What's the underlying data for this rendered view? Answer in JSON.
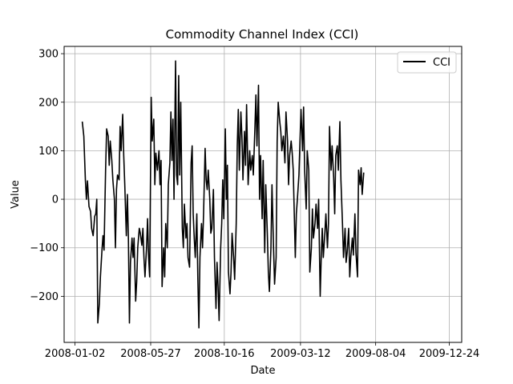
{
  "chart_data": {
    "type": "line",
    "title": "Commodity Channel Index (CCI)",
    "xlabel": "Date",
    "ylabel": "Value",
    "grid": true,
    "legend_position": "top-right",
    "xlim": [
      "2007-12-12",
      "2010-01-17"
    ],
    "ylim": [
      -295,
      315
    ],
    "x_ticks": [
      "2008-01-02",
      "2008-05-27",
      "2008-10-16",
      "2009-03-12",
      "2009-08-04",
      "2009-12-24"
    ],
    "y_ticks": [
      -200,
      -100,
      0,
      100,
      200,
      300
    ],
    "y_tick_labels": [
      "−200",
      "−100",
      "0",
      "100",
      "200",
      "300"
    ],
    "series": [
      {
        "name": "CCI",
        "color": "#000000",
        "points": [
          [
            "2008-01-16",
            160
          ],
          [
            "2008-01-19",
            130
          ],
          [
            "2008-01-22",
            40
          ],
          [
            "2008-01-24",
            0
          ],
          [
            "2008-01-26",
            38
          ],
          [
            "2008-01-29",
            -15
          ],
          [
            "2008-02-01",
            -25
          ],
          [
            "2008-02-03",
            -60
          ],
          [
            "2008-02-06",
            -75
          ],
          [
            "2008-02-09",
            -35
          ],
          [
            "2008-02-11",
            -30
          ],
          [
            "2008-02-13",
            0
          ],
          [
            "2008-02-15",
            -255
          ],
          [
            "2008-02-18",
            -215
          ],
          [
            "2008-02-20",
            -160
          ],
          [
            "2008-02-23",
            -105
          ],
          [
            "2008-02-25",
            -75
          ],
          [
            "2008-02-27",
            -105
          ],
          [
            "2008-03-01",
            60
          ],
          [
            "2008-03-03",
            145
          ],
          [
            "2008-03-06",
            130
          ],
          [
            "2008-03-08",
            70
          ],
          [
            "2008-03-10",
            120
          ],
          [
            "2008-03-13",
            80
          ],
          [
            "2008-03-15",
            40
          ],
          [
            "2008-03-18",
            0
          ],
          [
            "2008-03-20",
            -100
          ],
          [
            "2008-03-22",
            20
          ],
          [
            "2008-03-24",
            50
          ],
          [
            "2008-03-27",
            40
          ],
          [
            "2008-03-29",
            150
          ],
          [
            "2008-03-31",
            100
          ],
          [
            "2008-04-03",
            175
          ],
          [
            "2008-04-05",
            90
          ],
          [
            "2008-04-07",
            30
          ],
          [
            "2008-04-10",
            -75
          ],
          [
            "2008-04-12",
            10
          ],
          [
            "2008-04-14",
            -80
          ],
          [
            "2008-04-16",
            -255
          ],
          [
            "2008-04-18",
            -130
          ],
          [
            "2008-04-21",
            -80
          ],
          [
            "2008-04-23",
            -120
          ],
          [
            "2008-04-25",
            -80
          ],
          [
            "2008-04-28",
            -210
          ],
          [
            "2008-04-30",
            -170
          ],
          [
            "2008-05-02",
            -100
          ],
          [
            "2008-05-05",
            -60
          ],
          [
            "2008-05-07",
            -70
          ],
          [
            "2008-05-10",
            -95
          ],
          [
            "2008-05-12",
            -60
          ],
          [
            "2008-05-14",
            -120
          ],
          [
            "2008-05-16",
            -160
          ],
          [
            "2008-05-19",
            -100
          ],
          [
            "2008-05-21",
            -40
          ],
          [
            "2008-05-23",
            -120
          ],
          [
            "2008-05-25",
            -160
          ],
          [
            "2008-05-28",
            210
          ],
          [
            "2008-05-30",
            120
          ],
          [
            "2008-06-02",
            165
          ],
          [
            "2008-06-04",
            30
          ],
          [
            "2008-06-06",
            95
          ],
          [
            "2008-06-09",
            60
          ],
          [
            "2008-06-12",
            100
          ],
          [
            "2008-06-14",
            30
          ],
          [
            "2008-06-16",
            80
          ],
          [
            "2008-06-18",
            -180
          ],
          [
            "2008-06-21",
            -100
          ],
          [
            "2008-06-23",
            -160
          ],
          [
            "2008-06-25",
            -50
          ],
          [
            "2008-06-28",
            -100
          ],
          [
            "2008-06-30",
            30
          ],
          [
            "2008-07-03",
            75
          ],
          [
            "2008-07-05",
            180
          ],
          [
            "2008-07-07",
            80
          ],
          [
            "2008-07-09",
            165
          ],
          [
            "2008-07-11",
            0
          ],
          [
            "2008-07-14",
            285
          ],
          [
            "2008-07-16",
            50
          ],
          [
            "2008-07-18",
            30
          ],
          [
            "2008-07-20",
            255
          ],
          [
            "2008-07-22",
            50
          ],
          [
            "2008-07-24",
            200
          ],
          [
            "2008-07-27",
            -60
          ],
          [
            "2008-07-29",
            -100
          ],
          [
            "2008-07-31",
            -10
          ],
          [
            "2008-08-03",
            -80
          ],
          [
            "2008-08-05",
            -50
          ],
          [
            "2008-08-07",
            -120
          ],
          [
            "2008-08-10",
            -140
          ],
          [
            "2008-08-13",
            75
          ],
          [
            "2008-08-15",
            110
          ],
          [
            "2008-08-17",
            -30
          ],
          [
            "2008-08-19",
            -80
          ],
          [
            "2008-08-21",
            -120
          ],
          [
            "2008-08-24",
            -30
          ],
          [
            "2008-08-26",
            -165
          ],
          [
            "2008-08-28",
            -265
          ],
          [
            "2008-08-30",
            -120
          ],
          [
            "2008-09-02",
            -50
          ],
          [
            "2008-09-04",
            -100
          ],
          [
            "2008-09-06",
            -30
          ],
          [
            "2008-09-09",
            105
          ],
          [
            "2008-09-11",
            40
          ],
          [
            "2008-09-13",
            20
          ],
          [
            "2008-09-15",
            60
          ],
          [
            "2008-09-18",
            0
          ],
          [
            "2008-09-20",
            -70
          ],
          [
            "2008-09-22",
            -60
          ],
          [
            "2008-09-25",
            20
          ],
          [
            "2008-09-27",
            -120
          ],
          [
            "2008-09-30",
            -225
          ],
          [
            "2008-10-02",
            -130
          ],
          [
            "2008-10-04",
            -180
          ],
          [
            "2008-10-06",
            -250
          ],
          [
            "2008-10-09",
            -100
          ],
          [
            "2008-10-11",
            -50
          ],
          [
            "2008-10-13",
            40
          ],
          [
            "2008-10-15",
            -40
          ],
          [
            "2008-10-18",
            145
          ],
          [
            "2008-10-20",
            0
          ],
          [
            "2008-10-22",
            70
          ],
          [
            "2008-10-24",
            -150
          ],
          [
            "2008-10-27",
            -195
          ],
          [
            "2008-10-29",
            -150
          ],
          [
            "2008-10-31",
            -70
          ],
          [
            "2008-11-03",
            -120
          ],
          [
            "2008-11-05",
            -165
          ],
          [
            "2008-11-08",
            -50
          ],
          [
            "2008-11-10",
            110
          ],
          [
            "2008-11-12",
            185
          ],
          [
            "2008-11-14",
            60
          ],
          [
            "2008-11-17",
            180
          ],
          [
            "2008-11-19",
            130
          ],
          [
            "2008-11-21",
            40
          ],
          [
            "2008-11-24",
            140
          ],
          [
            "2008-11-26",
            70
          ],
          [
            "2008-11-28",
            195
          ],
          [
            "2008-12-01",
            30
          ],
          [
            "2008-12-04",
            100
          ],
          [
            "2008-12-06",
            60
          ],
          [
            "2008-12-09",
            90
          ],
          [
            "2008-12-11",
            50
          ],
          [
            "2008-12-14",
            145
          ],
          [
            "2008-12-16",
            215
          ],
          [
            "2008-12-18",
            110
          ],
          [
            "2008-12-21",
            235
          ],
          [
            "2008-12-23",
            0
          ],
          [
            "2008-12-25",
            90
          ],
          [
            "2008-12-28",
            -40
          ],
          [
            "2008-12-30",
            80
          ],
          [
            "2009-01-02",
            -110
          ],
          [
            "2009-01-04",
            30
          ],
          [
            "2009-01-07",
            -70
          ],
          [
            "2009-01-09",
            -150
          ],
          [
            "2009-01-11",
            -190
          ],
          [
            "2009-01-14",
            -100
          ],
          [
            "2009-01-16",
            30
          ],
          [
            "2009-01-19",
            -100
          ],
          [
            "2009-01-21",
            -175
          ],
          [
            "2009-01-24",
            -120
          ],
          [
            "2009-01-26",
            120
          ],
          [
            "2009-01-28",
            200
          ],
          [
            "2009-01-31",
            160
          ],
          [
            "2009-02-02",
            140
          ],
          [
            "2009-02-04",
            100
          ],
          [
            "2009-02-07",
            130
          ],
          [
            "2009-02-10",
            75
          ],
          [
            "2009-02-12",
            180
          ],
          [
            "2009-02-15",
            120
          ],
          [
            "2009-02-17",
            30
          ],
          [
            "2009-02-19",
            90
          ],
          [
            "2009-02-22",
            120
          ],
          [
            "2009-02-24",
            95
          ],
          [
            "2009-02-26",
            60
          ],
          [
            "2009-03-02",
            -120
          ],
          [
            "2009-03-04",
            -30
          ],
          [
            "2009-03-06",
            0
          ],
          [
            "2009-03-09",
            50
          ],
          [
            "2009-03-11",
            120
          ],
          [
            "2009-03-13",
            185
          ],
          [
            "2009-03-16",
            100
          ],
          [
            "2009-03-18",
            190
          ],
          [
            "2009-03-20",
            60
          ],
          [
            "2009-03-23",
            -20
          ],
          [
            "2009-03-25",
            100
          ],
          [
            "2009-03-28",
            60
          ],
          [
            "2009-03-30",
            -150
          ],
          [
            "2009-04-02",
            -100
          ],
          [
            "2009-04-04",
            -20
          ],
          [
            "2009-04-06",
            -80
          ],
          [
            "2009-04-09",
            -50
          ],
          [
            "2009-04-11",
            -10
          ],
          [
            "2009-04-14",
            -60
          ],
          [
            "2009-04-16",
            0
          ],
          [
            "2009-04-19",
            -200
          ],
          [
            "2009-04-21",
            -120
          ],
          [
            "2009-04-23",
            -60
          ],
          [
            "2009-04-25",
            -120
          ],
          [
            "2009-04-28",
            -70
          ],
          [
            "2009-04-30",
            -30
          ],
          [
            "2009-05-03",
            -100
          ],
          [
            "2009-05-05",
            -50
          ],
          [
            "2009-05-07",
            150
          ],
          [
            "2009-05-10",
            60
          ],
          [
            "2009-05-12",
            110
          ],
          [
            "2009-05-15",
            45
          ],
          [
            "2009-05-17",
            -30
          ],
          [
            "2009-05-19",
            90
          ],
          [
            "2009-05-22",
            110
          ],
          [
            "2009-05-24",
            60
          ],
          [
            "2009-05-27",
            160
          ],
          [
            "2009-05-29",
            40
          ],
          [
            "2009-06-01",
            -50
          ],
          [
            "2009-06-03",
            -120
          ],
          [
            "2009-06-06",
            -60
          ],
          [
            "2009-06-08",
            -130
          ],
          [
            "2009-06-10",
            -110
          ],
          [
            "2009-06-13",
            -60
          ],
          [
            "2009-06-15",
            -160
          ],
          [
            "2009-06-17",
            -120
          ],
          [
            "2009-06-20",
            -80
          ],
          [
            "2009-06-22",
            -115
          ],
          [
            "2009-06-25",
            -30
          ],
          [
            "2009-06-27",
            -110
          ],
          [
            "2009-06-30",
            -160
          ],
          [
            "2009-07-02",
            60
          ],
          [
            "2009-07-05",
            30
          ],
          [
            "2009-07-07",
            65
          ],
          [
            "2009-07-09",
            10
          ],
          [
            "2009-07-12",
            55
          ]
        ]
      }
    ]
  }
}
